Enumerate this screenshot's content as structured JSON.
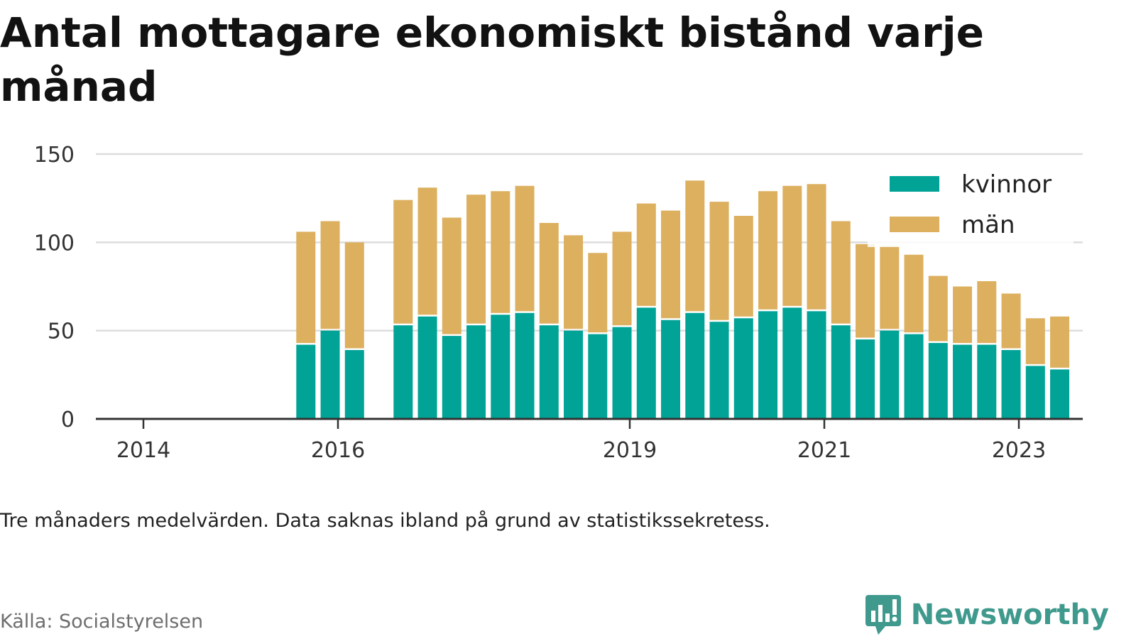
{
  "title": "Antal mottagare ekonomiskt bistånd varje månad",
  "note": "Tre månaders medelvärden. Data saknas ibland på grund av statistikssekretess.",
  "source": "Källa: Socialstyrelsen",
  "brand": {
    "name": "Newsworthy",
    "icon": "newsworthy-logo-icon",
    "color": "#3f9a8d"
  },
  "colors": {
    "kvinnor": "#00a396",
    "man": "#dcb05f",
    "grid": "#dddddd",
    "axis": "#333333"
  },
  "chart_data": {
    "type": "bar",
    "stacked": true,
    "x_ticks": [
      "2014",
      "2016",
      "2019",
      "2021",
      "2023"
    ],
    "y_ticks": [
      0,
      50,
      100,
      150
    ],
    "ylim": [
      0,
      150
    ],
    "grid": true,
    "legend_position": "top-right",
    "series": [
      {
        "name": "kvinnor",
        "color": "#00a396",
        "values": [
          42,
          50,
          39,
          53,
          58,
          47,
          53,
          59,
          60,
          53,
          50,
          48,
          52,
          63,
          56,
          60,
          55,
          57,
          61,
          63,
          61,
          53,
          45,
          50,
          48,
          43,
          42,
          42,
          39,
          30,
          28
        ]
      },
      {
        "name": "män",
        "color": "#dcb05f",
        "values": [
          64,
          62,
          61,
          71,
          73,
          67,
          74,
          70,
          72,
          58,
          54,
          46,
          54,
          59,
          62,
          75,
          68,
          58,
          68,
          69,
          72,
          59,
          54,
          48,
          45,
          38,
          33,
          36,
          32,
          27,
          30
        ]
      }
    ],
    "x_dates": [
      2015.67,
      2015.92,
      2016.17,
      2016.67,
      2016.92,
      2017.17,
      2017.42,
      2017.67,
      2017.92,
      2018.17,
      2018.42,
      2018.67,
      2018.92,
      2019.17,
      2019.42,
      2019.67,
      2019.92,
      2020.17,
      2020.42,
      2020.67,
      2020.92,
      2021.17,
      2021.42,
      2021.67,
      2021.92,
      2022.17,
      2022.42,
      2022.67,
      2022.92,
      2023.17,
      2023.42
    ]
  }
}
